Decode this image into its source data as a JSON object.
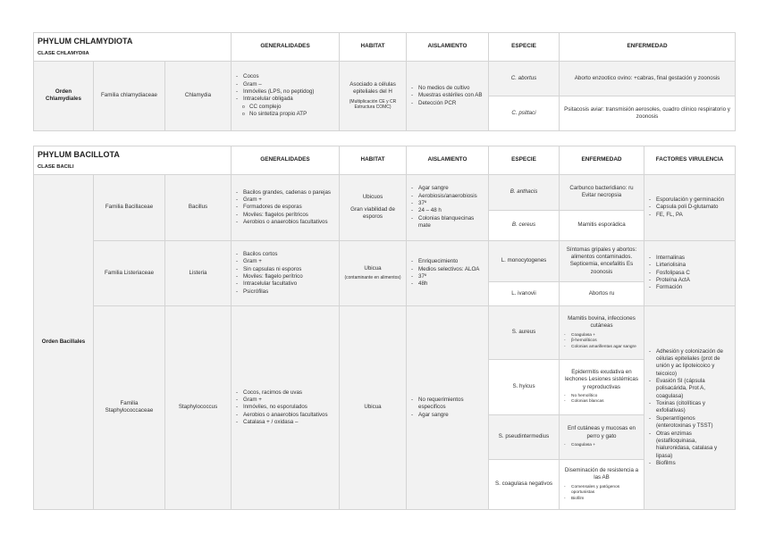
{
  "chlamydiota": {
    "phylum": "PHYLUM CHLAMYDIOTA",
    "clase": "CLASE CHLAMYDIIA",
    "headers": {
      "generalidades": "GENERALIDADES",
      "habitat": "HABITAT",
      "aislamiento": "AISLAMIENTO",
      "especie": "ESPECIE",
      "enfermedad": "ENFERMEDAD"
    },
    "orden": "Orden Chlamydiales",
    "familia": "Familia chlamydiaceae",
    "genero": "Chlamydia",
    "generalidades": [
      "Cocos",
      "Gram –",
      "Inmóviles (LPS, no peptidog)",
      "Intracelular obligada"
    ],
    "generalidades_sub": [
      "CC complejo",
      "No sintetiza propio ATP"
    ],
    "habitat": "Asociado a células epiteliales del H",
    "habitat_note": "(Multiplicación CE y CR Estructura COMC)",
    "aislamiento": [
      "No medios de cultivo",
      "Muestras estériles con AB",
      "Detección PCR"
    ],
    "species": [
      {
        "name": "C. abortus",
        "enfermedad": "Aborto enzootico ovino: +cabras, final gestación y zoonosis"
      },
      {
        "name": "C. psittaci",
        "enfermedad": "Psitacosis aviar: transmisión aerosoles, cuadro clínico respiratorio y zoonosis"
      }
    ]
  },
  "bacillota": {
    "phylum": "PHYLUM BACILLOTA",
    "clase": "CLASE BACILI",
    "headers": {
      "generalidades": "GENERALIDADES",
      "habitat": "HABITAT",
      "aislamiento": "AISLAMIENTO",
      "especie": "ESPECIE",
      "enfermedad": "ENFERMEDAD",
      "factores": "FACTORES VIRULENCIA"
    },
    "orden": "Orden Bacillales",
    "families": [
      {
        "familia": "Familia Bacillaceae",
        "genero": "Bacillus",
        "generalidades": [
          "Bacilos grandes, cadenas o parejas",
          "Gram +",
          "Formadores de esporas",
          "Moviles: flagelos perítricos",
          "Aerobios o anaerobios facultativos"
        ],
        "habitat": "Ubicuos",
        "habitat_note": "Gran viabilidad de esporos",
        "aislamiento": [
          "Agar sangre",
          "Aerobiosis/anaerobiosis",
          "37º",
          "24 – 48 h",
          "Colonias blanquecinas mate"
        ],
        "factores": [
          "Esporulación y germinación",
          "Capsula poli D-glutamato",
          "FE, FL, PA"
        ],
        "species": [
          {
            "name": "B. anthacis",
            "enfermedad": "Carbunco bacteridiano: ru Evitar necropsia"
          },
          {
            "name": "B. cereus",
            "enfermedad": "Mamitis esporádica"
          }
        ]
      },
      {
        "familia": "Familia Listeriaceae",
        "genero": "Listeria",
        "generalidades": [
          "Bacilos cortos",
          "Gram +",
          "Sin capsulas ni esporos",
          "Moviles: flagelo perítrico",
          "Intracelular facultativo",
          "Psicrófilas"
        ],
        "habitat": "Ubicua",
        "habitat_note": "(contaminante en alimentos)",
        "aislamiento": [
          "Enriquecimiento",
          "Medios selectivos: ALOA",
          "37º",
          "48h"
        ],
        "factores": [
          "Internalinas",
          "Lirteriolisina",
          "Fosfolipasa C",
          "Proteína ActA",
          "Formación"
        ],
        "species": [
          {
            "name": "L. monocytogenes",
            "enfermedad": "Síntomas gripales y abortos: alimentos contaminados. Septicemia, encefalitis Es zoonosis"
          },
          {
            "name": "L. ivanovii",
            "enfermedad": "Abortos ru"
          }
        ]
      },
      {
        "familia": "Familia Staphylococcaceae",
        "genero": "Staphylococcus",
        "generalidades": [
          "Cocos, racimos de uvas",
          "Gram +",
          "Inmóviles, no esporulados",
          "Aerobios o anaerobios facultativos",
          "Catalasa + / oxidasa –"
        ],
        "habitat": "Ubicua",
        "aislamiento": [
          "No requerimientos especificos",
          "Agar sangre"
        ],
        "factores": [
          "Adhesión y colonización de células epiteliales (prot de unión y ac lipoteicoico y teicoico)",
          "Evasión SI (cápsula polisacárida, Prot A, coagulasa)",
          "Toxinas (citolíticas y exfoliativas)",
          "Superantígenos (enterotoxinas y TSST)",
          "Otras enzimas (estafiloquinasa, hialuronidasa, catalasa y lipasa)",
          "Biofilms"
        ],
        "species": [
          {
            "name": "S. aureus",
            "enfermedad": "Mamitis bovina, infecciones cutáneas",
            "notes": [
              "Coagulasa +",
              "β-hemolíticos",
              "Colonias amarillentas agar sangre"
            ]
          },
          {
            "name": "S. hyicus",
            "enfermedad": "Epidermitis exudativa en lechones Lesiones sistémicas y reproductivas",
            "notes": [
              "No hemolítico",
              "Colonias blancas"
            ]
          },
          {
            "name": "S. pseudintermedius",
            "enfermedad": "Enf cutáneas y mucosas en perro y gato",
            "notes": [
              "Coagulasa +"
            ]
          },
          {
            "name": "S. coagulasa negativos",
            "enfermedad": "Diseminación de resistencia a las AB",
            "notes": [
              "Comensales y patógenos oportunistas",
              "Biofilm"
            ]
          }
        ]
      }
    ]
  }
}
